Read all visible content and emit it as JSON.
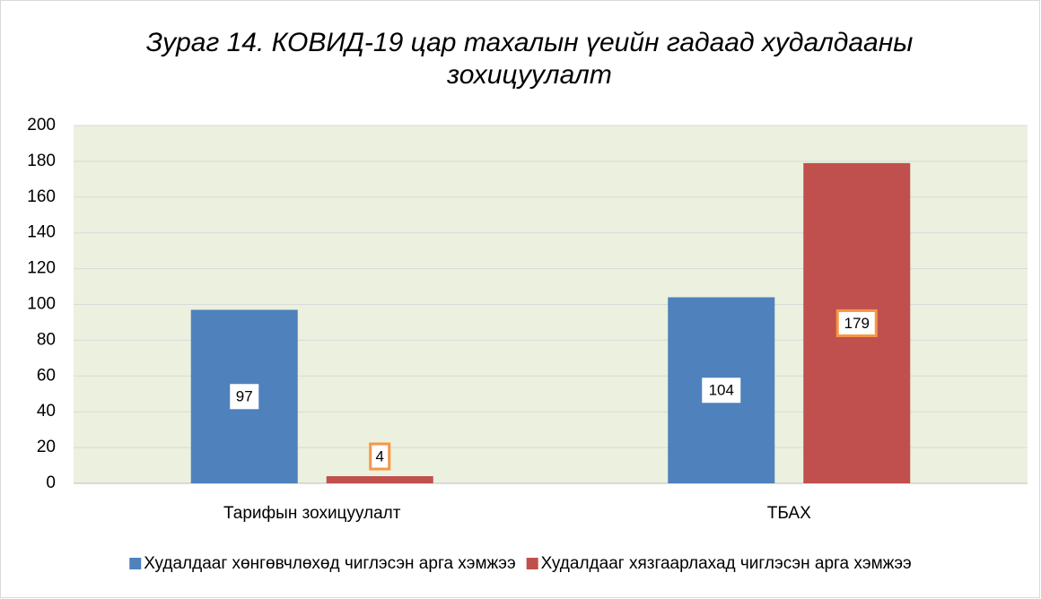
{
  "chart_data": {
    "type": "bar",
    "title": "Зураг 14. КОВИД-19 цар тахалын үеийн гадаад худалдааны зохицуулалт",
    "categories": [
      "Тарифын зохицуулалт",
      "ТБАХ"
    ],
    "series": [
      {
        "name": "Худалдааг хөнгөвчлөхөд чиглэсэн арга хэмжээ",
        "color": "#4f81bd",
        "values": [
          97,
          104
        ]
      },
      {
        "name": "Худалдааг хязгаарлахад чиглэсэн арга хэмжээ",
        "color": "#c0504d",
        "values": [
          4,
          179
        ]
      }
    ],
    "ylim": [
      0,
      200
    ],
    "yticks": [
      0,
      20,
      40,
      60,
      80,
      100,
      120,
      140,
      160,
      180,
      200
    ],
    "grid": true,
    "legend": "bottom"
  }
}
